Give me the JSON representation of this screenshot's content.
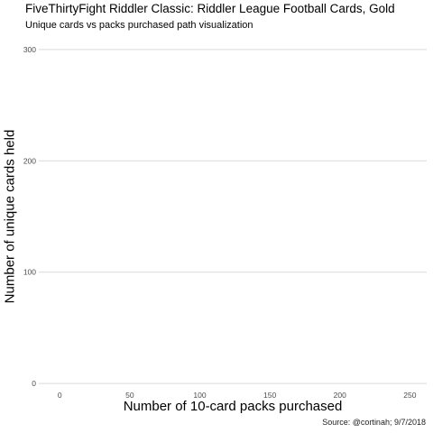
{
  "chart_data": {
    "type": "line",
    "title": "FiveThirtyFight Riddler Classic: Riddler League Football Cards, Gold",
    "subtitle": "Unique cards vs packs purchased path visualization",
    "xlabel": "Number of 10-card packs purchased",
    "ylabel": "Number of unique cards held",
    "caption": "Source: @cortinah; 9/7/2018",
    "xlim": [
      -15,
      262
    ],
    "ylim": [
      -4,
      304
    ],
    "x_ticks": [
      0,
      50,
      100,
      150,
      200,
      250
    ],
    "y_ticks": [
      0,
      100,
      200,
      300
    ],
    "grid": true,
    "series": []
  }
}
